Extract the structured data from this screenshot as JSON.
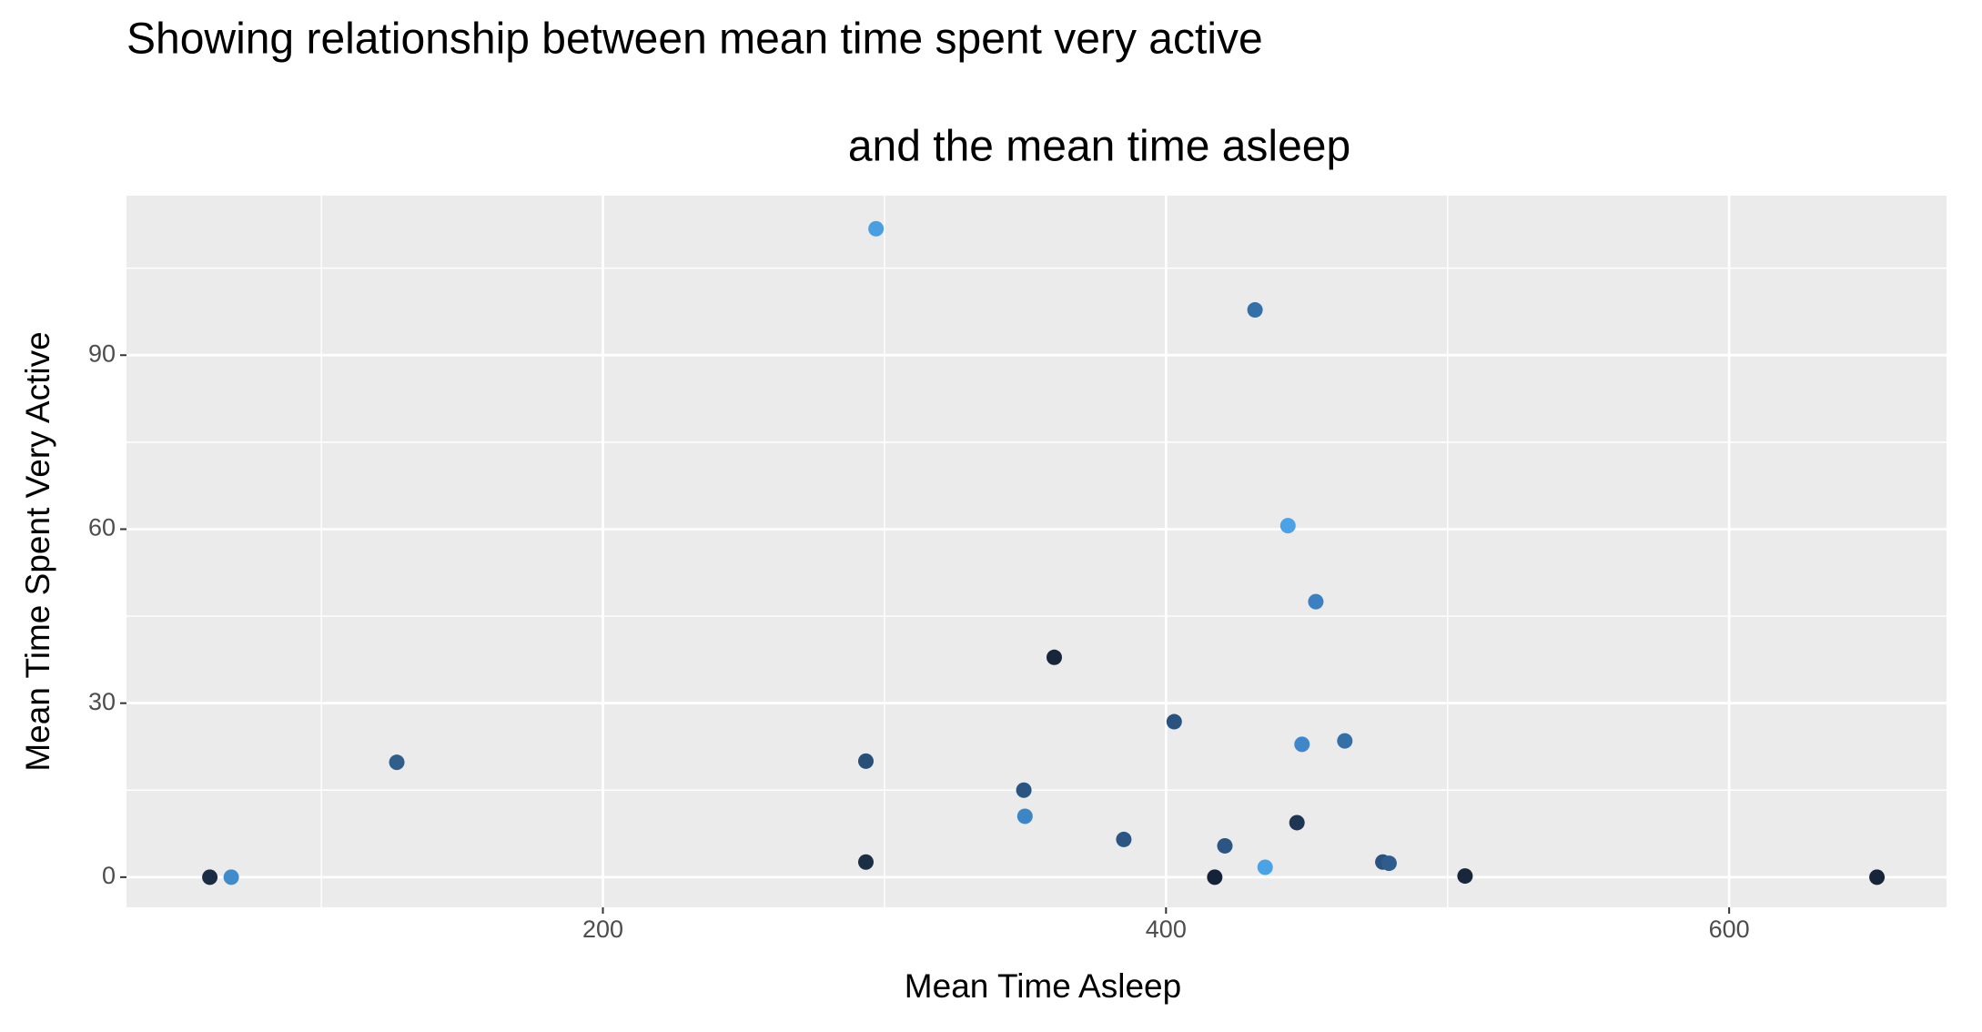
{
  "chart_data": {
    "type": "scatter",
    "title": "Showing relationship between mean time spent very active",
    "subtitle": "and the mean time asleep",
    "x_label": "Mean Time Asleep",
    "y_label": "Mean Time Spent Very Active",
    "xlim": [
      30.8,
      677.2
    ],
    "ylim": [
      -5.2,
      117.5
    ],
    "xticks": [
      200,
      400,
      600
    ],
    "yticks": [
      0,
      30,
      60,
      90
    ],
    "xminor": [
      100,
      300,
      500
    ],
    "yminor": [
      15,
      45,
      75,
      105
    ],
    "grid": true,
    "x": [
      60.4,
      68.0,
      126.8,
      297.0,
      293.4,
      293.4,
      349.5,
      349.9,
      360.3,
      385.0,
      402.9,
      417.3,
      420.9,
      431.6,
      435.2,
      443.3,
      446.5,
      448.3,
      453.2,
      463.5,
      477.0,
      479.2,
      506.2,
      652.5
    ],
    "values": [
      0,
      0,
      19.8,
      111.8,
      20.0,
      2.6,
      15.0,
      10.5,
      37.9,
      6.5,
      26.8,
      0,
      5.4,
      97.8,
      1.7,
      60.6,
      9.4,
      22.9,
      47.5,
      23.5,
      2.6,
      2.4,
      0.2,
      0
    ],
    "colors": [
      "#1a2d45",
      "#3f8ccd",
      "#2f5e8c",
      "#4a9fe0",
      "#284f78",
      "#1b2e46",
      "#2a5582",
      "#3d86c6",
      "#17263a",
      "#2b5684",
      "#295281",
      "#15233a",
      "#2b5684",
      "#3470a8",
      "#4aa3e6",
      "#4aa3e6",
      "#1e3553",
      "#3f87ca",
      "#3b80c2",
      "#3470a8",
      "#2a5180",
      "#2e5d8d",
      "#18273c",
      "#16253a"
    ]
  }
}
